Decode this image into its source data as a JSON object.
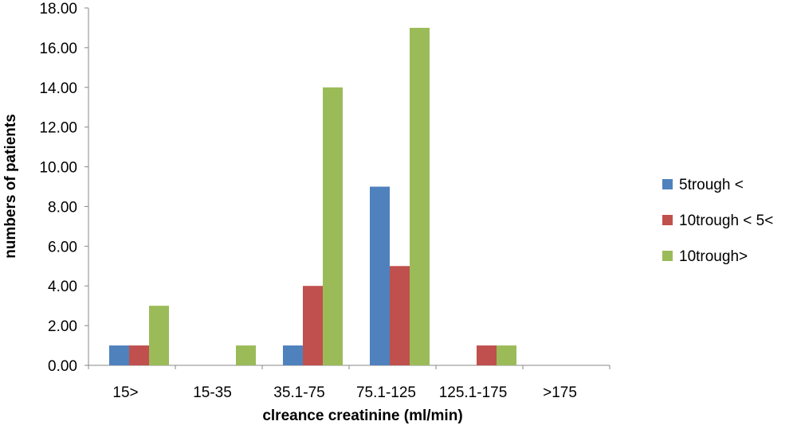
{
  "chart_data": {
    "type": "bar",
    "title": "",
    "xlabel": "clreance creatinine (ml/min)",
    "ylabel": "numbers of patients",
    "ylim": [
      0,
      18
    ],
    "yticks": [
      "0.00",
      "2.00",
      "4.00",
      "6.00",
      "8.00",
      "10.00",
      "12.00",
      "14.00",
      "16.00",
      "18.00"
    ],
    "categories": [
      "15>",
      "15-35",
      "35.1-75",
      "75.1-125",
      "125.1-175",
      ">175"
    ],
    "series": [
      {
        "name": "5trough <",
        "color": "#4F81BD",
        "values": [
          1,
          0,
          1,
          9,
          0,
          0
        ]
      },
      {
        "name": "10trough < 5<",
        "color": "#C0504D",
        "values": [
          1,
          0,
          4,
          5,
          1,
          0
        ]
      },
      {
        "name": "10trough>",
        "color": "#9BBB59",
        "values": [
          3,
          1,
          14,
          17,
          1,
          0
        ]
      }
    ],
    "grid": false,
    "legend": "right"
  }
}
